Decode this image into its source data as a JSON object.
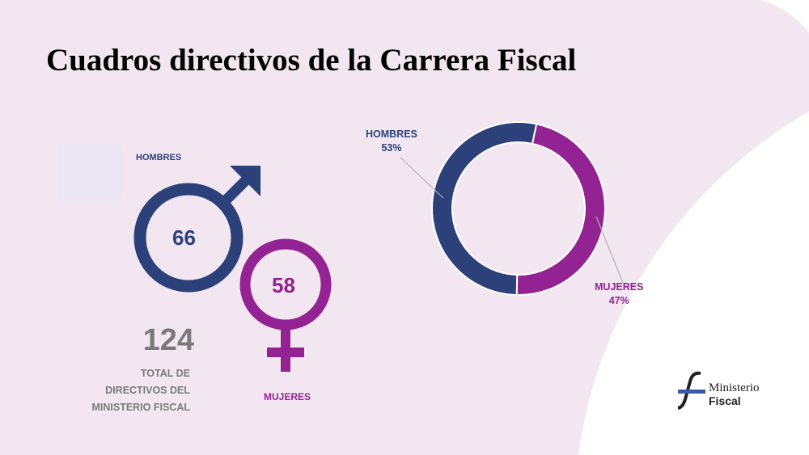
{
  "title": "Cuadros directivos de la Carrera Fiscal",
  "infographic": {
    "men": {
      "label": "HOMBRES",
      "value": "66",
      "color": "#2c4079"
    },
    "women": {
      "label": "MUJERES",
      "value": "58",
      "color": "#932392"
    },
    "total": {
      "value": "124",
      "line1": "TOTAL DE",
      "line2": "DIRECTIVOS DEL",
      "line3": "MINISTERIO FISCAL"
    }
  },
  "chart_data": {
    "type": "pie",
    "subtype": "donut",
    "slices": [
      {
        "name": "HOMBRES",
        "value": 53,
        "label": "53%",
        "color": "#2c4079"
      },
      {
        "name": "MUJERES",
        "value": 47,
        "label": "47%",
        "color": "#932392"
      }
    ]
  },
  "logo": {
    "line1": "Ministerio",
    "line2": "Fiscal"
  }
}
